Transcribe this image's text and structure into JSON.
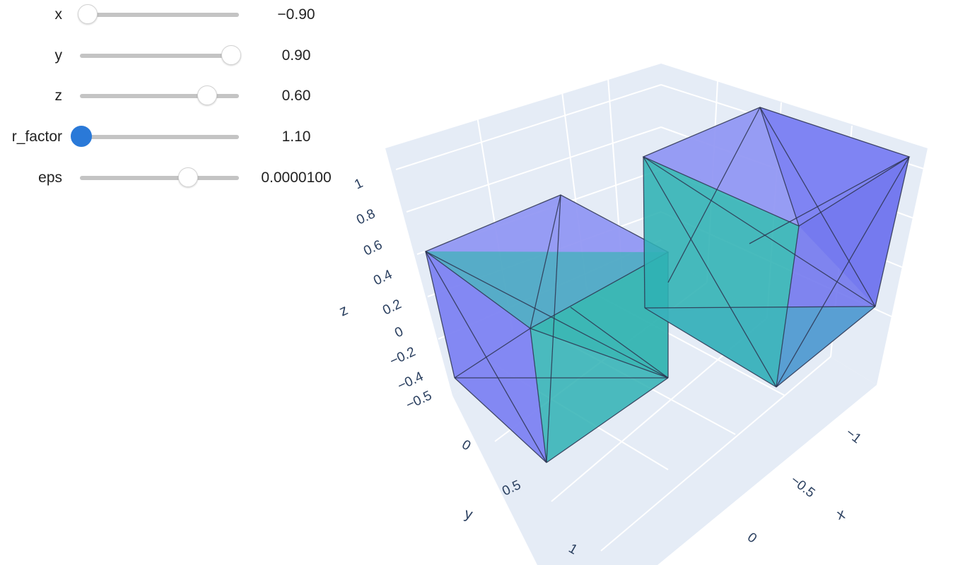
{
  "sliders": [
    {
      "label": "x",
      "value": -0.9,
      "display": "−0.90",
      "fraction": 0.05,
      "active": false
    },
    {
      "label": "y",
      "value": 0.9,
      "display": "0.90",
      "fraction": 0.95,
      "active": false
    },
    {
      "label": "z",
      "value": 0.6,
      "display": "0.60",
      "fraction": 0.8,
      "active": false
    },
    {
      "label": "r_factor",
      "value": 1.1,
      "display": "1.10",
      "fraction": 0.01,
      "active": true
    },
    {
      "label": "eps",
      "value": 1e-05,
      "display": "0.0000100",
      "fraction": 0.68,
      "active": false
    }
  ],
  "plot": {
    "type": "mesh3d",
    "colors": {
      "mesh": "#636efa",
      "mesh_alt": "#1fbf9f",
      "background": "#e5ecf6",
      "grid": "#ffffff",
      "tick": "#2a3f5f"
    },
    "axes": {
      "x": {
        "title": "x",
        "ticks": [
          "−1",
          "−0.5",
          "0"
        ]
      },
      "y": {
        "title": "y",
        "ticks": [
          "0",
          "0.5",
          "1"
        ]
      },
      "z": {
        "title": "z",
        "ticks": [
          "1",
          "0.8",
          "0.6",
          "0.4",
          "0.2",
          "0",
          "−0.2",
          "−0.4",
          "−0.5"
        ]
      }
    }
  }
}
